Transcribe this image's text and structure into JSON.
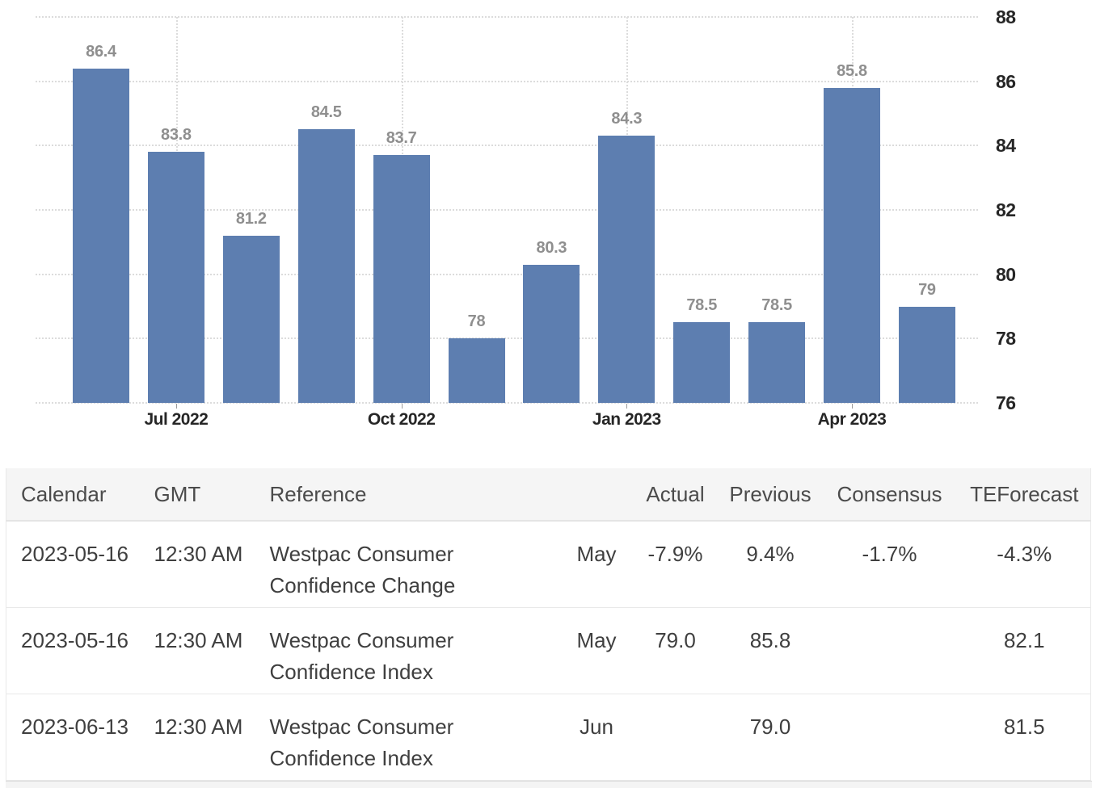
{
  "chart_data": {
    "type": "bar",
    "title": "",
    "values": [
      86.4,
      83.8,
      81.2,
      84.5,
      83.7,
      78,
      80.3,
      84.3,
      78.5,
      78.5,
      85.8,
      79
    ],
    "bar_labels": [
      "86.4",
      "83.8",
      "81.2",
      "84.5",
      "83.7",
      "78",
      "80.3",
      "84.3",
      "78.5",
      "78.5",
      "85.8",
      "79"
    ],
    "x_ticks": [
      {
        "index": 1,
        "label": "Jul 2022"
      },
      {
        "index": 4,
        "label": "Oct 2022"
      },
      {
        "index": 7,
        "label": "Jan 2023"
      },
      {
        "index": 10,
        "label": "Apr 2023"
      }
    ],
    "y_ticks": [
      76,
      78,
      80,
      82,
      84,
      86,
      88
    ],
    "ylim": [
      76,
      88
    ],
    "grid": "dotted",
    "legend_position": "none",
    "bar_color": "#5d7eb0",
    "bar_label_color": "#8f8f8f",
    "axis_text_color": "#262626"
  },
  "table": {
    "headers": [
      "Calendar",
      "GMT",
      "Reference",
      "",
      "Actual",
      "Previous",
      "Consensus",
      "TEForecast"
    ],
    "rows": [
      {
        "calendar": "2023-05-16",
        "gmt": "12:30 AM",
        "reference": "Westpac Consumer Confidence Change",
        "period": "May",
        "actual": "-7.9%",
        "previous": "9.4%",
        "consensus": "-1.7%",
        "teforecast": "-4.3%"
      },
      {
        "calendar": "2023-05-16",
        "gmt": "12:30 AM",
        "reference": "Westpac Consumer Confidence Index",
        "period": "May",
        "actual": "79.0",
        "previous": "85.8",
        "consensus": "",
        "teforecast": "82.1"
      },
      {
        "calendar": "2023-06-13",
        "gmt": "12:30 AM",
        "reference": "Westpac Consumer Confidence Index",
        "period": "Jun",
        "actual": "",
        "previous": "79.0",
        "consensus": "",
        "teforecast": "81.5"
      }
    ]
  },
  "colors": {
    "header_background": "#f5f5f5",
    "row_divider": "#e9e9e9",
    "gridline": "#dcdcdc"
  }
}
